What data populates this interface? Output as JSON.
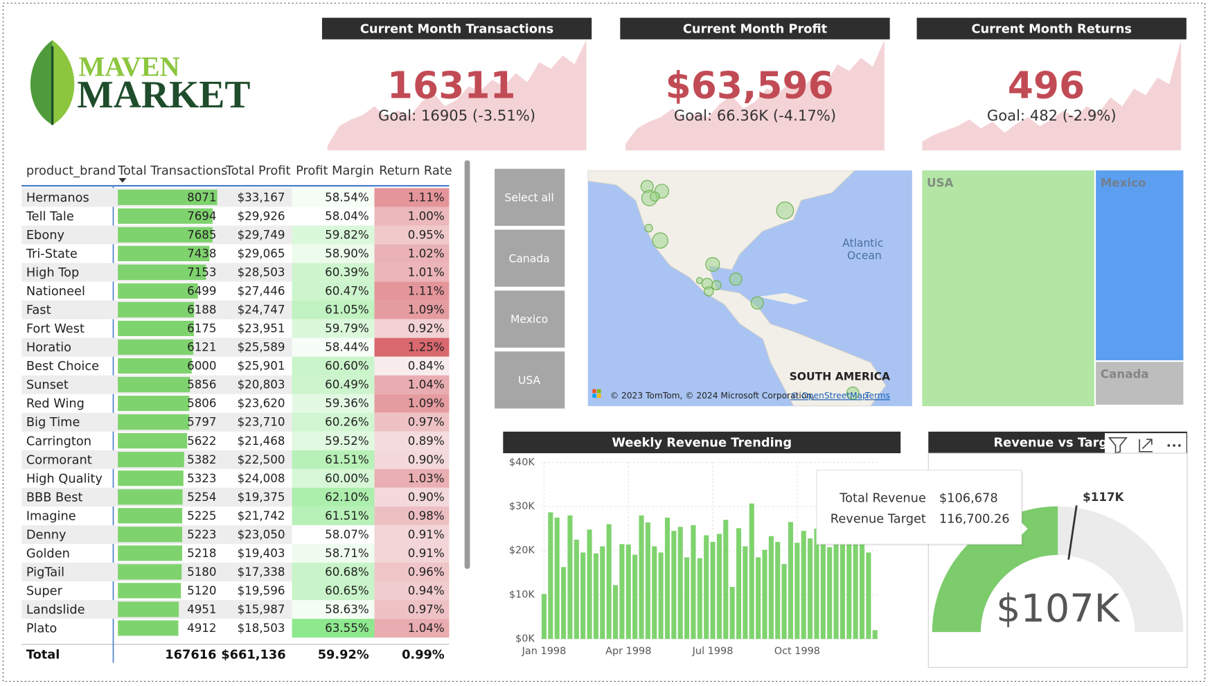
{
  "logo": {
    "line1": "MAVEN",
    "line2": "MARKET"
  },
  "kpis": [
    {
      "title": "Current Month Transactions",
      "value": "16311",
      "goal": "Goal: 16905 (-3.51%)",
      "trend": [
        4,
        22,
        28,
        32,
        40,
        30,
        36,
        31,
        44,
        52,
        40,
        46,
        58,
        54,
        64,
        58,
        70,
        62,
        80,
        74,
        86,
        78,
        100
      ]
    },
    {
      "title": "Current Month Profit",
      "value": "$63,596",
      "goal": "Goal: 66.36K (-4.17%)",
      "trend": [
        6,
        20,
        26,
        30,
        38,
        28,
        34,
        30,
        42,
        50,
        38,
        44,
        56,
        52,
        62,
        56,
        68,
        60,
        78,
        72,
        84,
        76,
        100
      ]
    },
    {
      "title": "Current Month Returns",
      "value": "496",
      "goal": "Goal: 482 (-2.9%)",
      "trend": [
        8,
        14,
        18,
        22,
        28,
        20,
        26,
        16,
        24,
        30,
        22,
        28,
        36,
        30,
        40,
        34,
        48,
        40,
        56,
        50,
        66,
        60,
        100
      ]
    }
  ],
  "table": {
    "columns": [
      "product_brand",
      "Total Transactions",
      "Total Profit",
      "Profit Margin",
      "Return Rate"
    ],
    "rows": [
      {
        "brand": "Hermanos",
        "transactions": 8071,
        "profit": "$33,167",
        "margin": {
          "value": 58.54,
          "label": "58.54%"
        },
        "return_rate": {
          "value": 1.11,
          "label": "1.11%"
        }
      },
      {
        "brand": "Tell Tale",
        "transactions": 7694,
        "profit": "$29,926",
        "margin": {
          "value": 58.04,
          "label": "58.04%"
        },
        "return_rate": {
          "value": 1.0,
          "label": "1.00%"
        }
      },
      {
        "brand": "Ebony",
        "transactions": 7685,
        "profit": "$29,749",
        "margin": {
          "value": 59.82,
          "label": "59.82%"
        },
        "return_rate": {
          "value": 0.95,
          "label": "0.95%"
        }
      },
      {
        "brand": "Tri-State",
        "transactions": 7438,
        "profit": "$29,065",
        "margin": {
          "value": 58.9,
          "label": "58.90%"
        },
        "return_rate": {
          "value": 1.02,
          "label": "1.02%"
        }
      },
      {
        "brand": "High Top",
        "transactions": 7153,
        "profit": "$28,503",
        "margin": {
          "value": 60.39,
          "label": "60.39%"
        },
        "return_rate": {
          "value": 1.01,
          "label": "1.01%"
        }
      },
      {
        "brand": "Nationeel",
        "transactions": 6499,
        "profit": "$27,446",
        "margin": {
          "value": 60.47,
          "label": "60.47%"
        },
        "return_rate": {
          "value": 1.11,
          "label": "1.11%"
        }
      },
      {
        "brand": "Fast",
        "transactions": 6188,
        "profit": "$24,747",
        "margin": {
          "value": 61.05,
          "label": "61.05%"
        },
        "return_rate": {
          "value": 1.09,
          "label": "1.09%"
        }
      },
      {
        "brand": "Fort West",
        "transactions": 6175,
        "profit": "$23,951",
        "margin": {
          "value": 59.79,
          "label": "59.79%"
        },
        "return_rate": {
          "value": 0.92,
          "label": "0.92%"
        }
      },
      {
        "brand": "Horatio",
        "transactions": 6121,
        "profit": "$25,589",
        "margin": {
          "value": 58.44,
          "label": "58.44%"
        },
        "return_rate": {
          "value": 1.25,
          "label": "1.25%"
        }
      },
      {
        "brand": "Best Choice",
        "transactions": 6000,
        "profit": "$25,901",
        "margin": {
          "value": 60.6,
          "label": "60.60%"
        },
        "return_rate": {
          "value": 0.84,
          "label": "0.84%"
        }
      },
      {
        "brand": "Sunset",
        "transactions": 5856,
        "profit": "$20,803",
        "margin": {
          "value": 60.49,
          "label": "60.49%"
        },
        "return_rate": {
          "value": 1.04,
          "label": "1.04%"
        }
      },
      {
        "brand": "Red Wing",
        "transactions": 5806,
        "profit": "$23,620",
        "margin": {
          "value": 59.36,
          "label": "59.36%"
        },
        "return_rate": {
          "value": 1.09,
          "label": "1.09%"
        }
      },
      {
        "brand": "Big Time",
        "transactions": 5797,
        "profit": "$23,710",
        "margin": {
          "value": 60.26,
          "label": "60.26%"
        },
        "return_rate": {
          "value": 0.97,
          "label": "0.97%"
        }
      },
      {
        "brand": "Carrington",
        "transactions": 5622,
        "profit": "$21,468",
        "margin": {
          "value": 59.52,
          "label": "59.52%"
        },
        "return_rate": {
          "value": 0.89,
          "label": "0.89%"
        }
      },
      {
        "brand": "Cormorant",
        "transactions": 5382,
        "profit": "$22,500",
        "margin": {
          "value": 61.51,
          "label": "61.51%"
        },
        "return_rate": {
          "value": 0.9,
          "label": "0.90%"
        }
      },
      {
        "brand": "High Quality",
        "transactions": 5323,
        "profit": "$24,008",
        "margin": {
          "value": 60.0,
          "label": "60.00%"
        },
        "return_rate": {
          "value": 1.03,
          "label": "1.03%"
        }
      },
      {
        "brand": "BBB Best",
        "transactions": 5254,
        "profit": "$19,375",
        "margin": {
          "value": 62.1,
          "label": "62.10%"
        },
        "return_rate": {
          "value": 0.9,
          "label": "0.90%"
        }
      },
      {
        "brand": "Imagine",
        "transactions": 5225,
        "profit": "$21,742",
        "margin": {
          "value": 61.51,
          "label": "61.51%"
        },
        "return_rate": {
          "value": 0.98,
          "label": "0.98%"
        }
      },
      {
        "brand": "Denny",
        "transactions": 5223,
        "profit": "$23,050",
        "margin": {
          "value": 58.07,
          "label": "58.07%"
        },
        "return_rate": {
          "value": 0.91,
          "label": "0.91%"
        }
      },
      {
        "brand": "Golden",
        "transactions": 5218,
        "profit": "$19,403",
        "margin": {
          "value": 58.71,
          "label": "58.71%"
        },
        "return_rate": {
          "value": 0.91,
          "label": "0.91%"
        }
      },
      {
        "brand": "PigTail",
        "transactions": 5180,
        "profit": "$17,338",
        "margin": {
          "value": 60.68,
          "label": "60.68%"
        },
        "return_rate": {
          "value": 0.96,
          "label": "0.96%"
        }
      },
      {
        "brand": "Super",
        "transactions": 5120,
        "profit": "$19,596",
        "margin": {
          "value": 60.65,
          "label": "60.65%"
        },
        "return_rate": {
          "value": 0.94,
          "label": "0.94%"
        }
      },
      {
        "brand": "Landslide",
        "transactions": 4951,
        "profit": "$15,987",
        "margin": {
          "value": 58.63,
          "label": "58.63%"
        },
        "return_rate": {
          "value": 0.97,
          "label": "0.97%"
        }
      },
      {
        "brand": "Plato",
        "transactions": 4912,
        "profit": "$18,503",
        "margin": {
          "value": 63.55,
          "label": "63.55%"
        },
        "return_rate": {
          "value": 1.04,
          "label": "1.04%"
        }
      }
    ],
    "total": {
      "brand": "Total",
      "transactions": 167616,
      "profit": "$661,136",
      "margin": "59.92%",
      "return_rate": "0.99%"
    }
  },
  "slicer": {
    "options": [
      "Select all",
      "Canada",
      "Mexico",
      "USA"
    ]
  },
  "map": {
    "ocean": [
      "Atlantic",
      "Ocean"
    ],
    "continent": "SOUTH AMERICA",
    "copyright": "© 2023 TomTom, © 2024 Microsoft Corporation,",
    "osm": "© OpenStreetMap",
    "terms": "Terms"
  },
  "treemap": {
    "items": [
      {
        "name": "USA",
        "value": 66.5,
        "color": "#b3e6a5"
      },
      {
        "name": "Mexico",
        "value": 27.2,
        "color": "#5c9ff0"
      },
      {
        "name": "Canada",
        "value": 6.3,
        "color": "#bdbdbd"
      }
    ]
  },
  "chart_data": [
    {
      "type": "bar",
      "title": "Weekly Revenue Trending",
      "color": "#7fd36e",
      "grid": true,
      "values": [
        10200,
        28700,
        27500,
        16300,
        28000,
        22500,
        19600,
        24800,
        19400,
        21000,
        26000,
        12200,
        21500,
        21400,
        19100,
        28000,
        26400,
        21000,
        19600,
        27500,
        24500,
        25400,
        18500,
        25800,
        18300,
        23500,
        22000,
        23800,
        27000,
        11800,
        25100,
        21000,
        30700,
        18500,
        20200,
        23300,
        22000,
        17000,
        26500,
        21800,
        24500,
        22800,
        25000,
        22000,
        20800,
        24300,
        24000,
        26000,
        23000,
        22500,
        19600,
        2000
      ],
      "xticks": [
        {
          "value": 0,
          "label": "Jan 1998"
        },
        {
          "value": 13,
          "label": "Apr 1998"
        },
        {
          "value": 26,
          "label": "Jul 1998"
        },
        {
          "value": 39,
          "label": "Oct 1998"
        }
      ],
      "ylim": [
        0,
        40000
      ],
      "yticks": [
        {
          "value": 0,
          "label": "$0K"
        },
        {
          "value": 10000,
          "label": "$10K"
        },
        {
          "value": 20000,
          "label": "$20K"
        },
        {
          "value": 30000,
          "label": "$30K"
        },
        {
          "value": 40000,
          "label": "$40K"
        }
      ]
    },
    {
      "type": "gauge",
      "title": "Revenue vs Target",
      "value": 106678,
      "value_label": "$107K",
      "target": 116700.26,
      "target_label": "$117K",
      "range": [
        0,
        213356
      ],
      "color": "#7ccc6c",
      "tooltip": [
        {
          "label": "Total Revenue",
          "value": "$106,678"
        },
        {
          "label": "Revenue Target",
          "value": "116,700.26"
        }
      ]
    }
  ]
}
